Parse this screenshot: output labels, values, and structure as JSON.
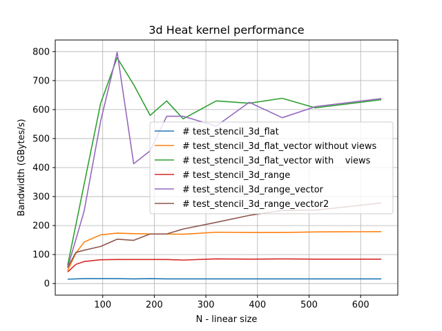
{
  "chart_data": {
    "type": "line",
    "title": "3d Heat kernel performance",
    "xlabel": "N - linear size",
    "ylabel": "Bandwidth (GBytes/s)",
    "xlim": [
      8,
      672
    ],
    "ylim": [
      -40,
      840
    ],
    "xticks": [
      100,
      200,
      300,
      400,
      500,
      600
    ],
    "yticks": [
      0,
      100,
      200,
      300,
      400,
      500,
      600,
      700,
      800
    ],
    "grid": true,
    "legend_position": "center-right",
    "series": [
      {
        "name": "# test_stencil_3d_flat",
        "color": "#1f77b4",
        "x": [
          32,
          48,
          64,
          96,
          128,
          160,
          192,
          224,
          256,
          320,
          384,
          448,
          512,
          640
        ],
        "y": [
          15,
          16,
          17,
          17,
          17,
          16,
          17,
          16,
          16,
          16,
          16,
          16,
          16,
          16
        ]
      },
      {
        "name": "# test_stencil_3d_flat_vector without views",
        "color": "#ff7f0e",
        "x": [
          32,
          48,
          64,
          96,
          128,
          160,
          192,
          224,
          256,
          320,
          384,
          448,
          512,
          640
        ],
        "y": [
          45,
          105,
          143,
          168,
          174,
          172,
          171,
          171,
          170,
          177,
          176,
          176,
          178,
          179
        ]
      },
      {
        "name": "# test_stencil_3d_flat_vector with    views",
        "color": "#2ca02c",
        "x": [
          32,
          96,
          128,
          160,
          192,
          224,
          256,
          320,
          384,
          448,
          512,
          640
        ],
        "y": [
          63,
          622,
          779,
          686,
          580,
          630,
          568,
          630,
          622,
          639,
          606,
          634
        ]
      },
      {
        "name": "# test_stencil_3d_range",
        "color": "#d62728",
        "x": [
          32,
          48,
          64,
          96,
          128,
          160,
          192,
          224,
          256,
          320,
          384,
          448,
          512,
          640
        ],
        "y": [
          40,
          66,
          76,
          82,
          83,
          83,
          83,
          83,
          81,
          85,
          84,
          85,
          84,
          84
        ]
      },
      {
        "name": "# test_stencil_3d_range_vector",
        "color": "#9467bd",
        "x": [
          32,
          64,
          96,
          128,
          160,
          192,
          224,
          256,
          320,
          384,
          448,
          512,
          640
        ],
        "y": [
          55,
          250,
          560,
          798,
          413,
          458,
          577,
          577,
          543,
          625,
          572,
          610,
          638
        ]
      },
      {
        "name": "# test_stencil_3d_range_vector2",
        "color": "#8c564b",
        "x": [
          32,
          48,
          64,
          96,
          128,
          160,
          192,
          224,
          256,
          320,
          384,
          448,
          512,
          640
        ],
        "y": [
          55,
          107,
          115,
          128,
          153,
          149,
          171,
          171,
          188,
          211,
          235,
          252,
          253,
          278
        ]
      }
    ]
  }
}
